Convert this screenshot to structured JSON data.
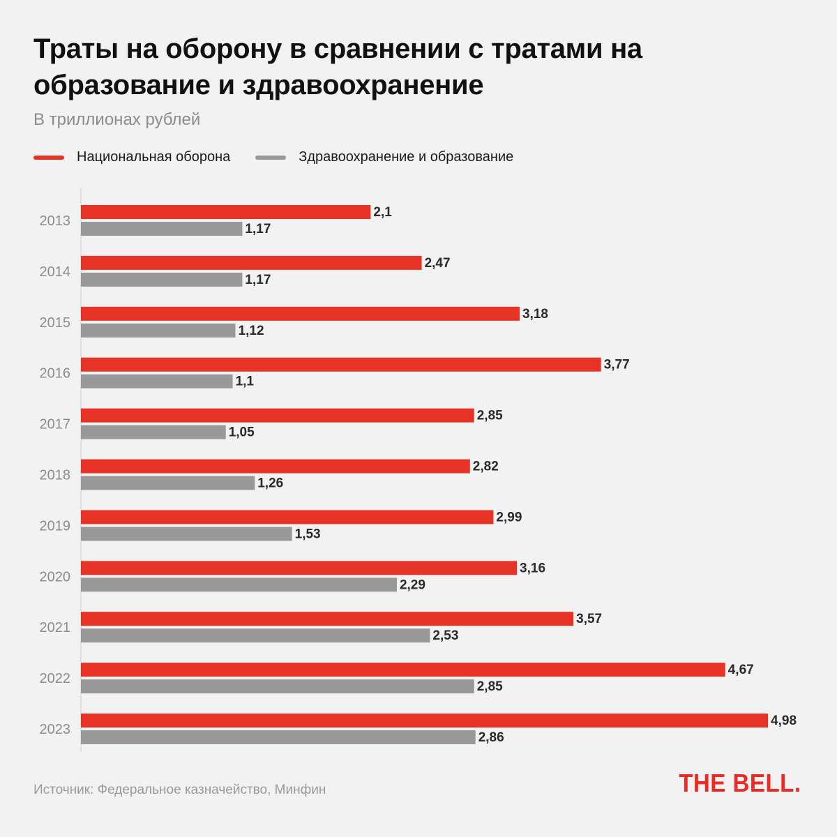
{
  "chart_data": {
    "type": "bar",
    "orientation": "horizontal",
    "title": "Траты на оборону в сравнении с тратами на образование и здравоохранение",
    "subtitle": "В триллионах рублей",
    "xlabel": "",
    "ylabel": "",
    "xlim": [
      0,
      5
    ],
    "grid": false,
    "legend_position": "top-left",
    "categories": [
      "2013",
      "2014",
      "2015",
      "2016",
      "2017",
      "2018",
      "2019",
      "2020",
      "2021",
      "2022",
      "2023"
    ],
    "series": [
      {
        "name": "Национальная оборона",
        "color": "#e63325",
        "values": [
          2.1,
          2.47,
          3.18,
          3.77,
          2.85,
          2.82,
          2.99,
          3.16,
          3.57,
          4.67,
          4.98
        ],
        "labels": [
          "2,1",
          "2,47",
          "3,18",
          "3,77",
          "2,85",
          "2,82",
          "2,99",
          "3,16",
          "3,57",
          "4,67",
          "4,98"
        ]
      },
      {
        "name": "Здравоохранение и образование",
        "color": "#999999",
        "values": [
          1.17,
          1.17,
          1.12,
          1.1,
          1.05,
          1.26,
          1.53,
          2.29,
          2.53,
          2.85,
          2.86
        ],
        "labels": [
          "1,17",
          "1,17",
          "1,12",
          "1,1",
          "1,05",
          "1,26",
          "1,53",
          "2,29",
          "2,53",
          "2,85",
          "2,86"
        ]
      }
    ]
  },
  "header": {
    "title": "Траты на оборону в сравнении с тратами на образование и здравоохранение",
    "subtitle": "В триллионах рублей"
  },
  "legend": [
    {
      "label": "Национальная оборона",
      "color": "#e63325"
    },
    {
      "label": "Здравоохранение и образование",
      "color": "#999999"
    }
  ],
  "footer": {
    "source": "Источник: Федеральное казначейство, Минфин",
    "logo": "THE BELL."
  }
}
